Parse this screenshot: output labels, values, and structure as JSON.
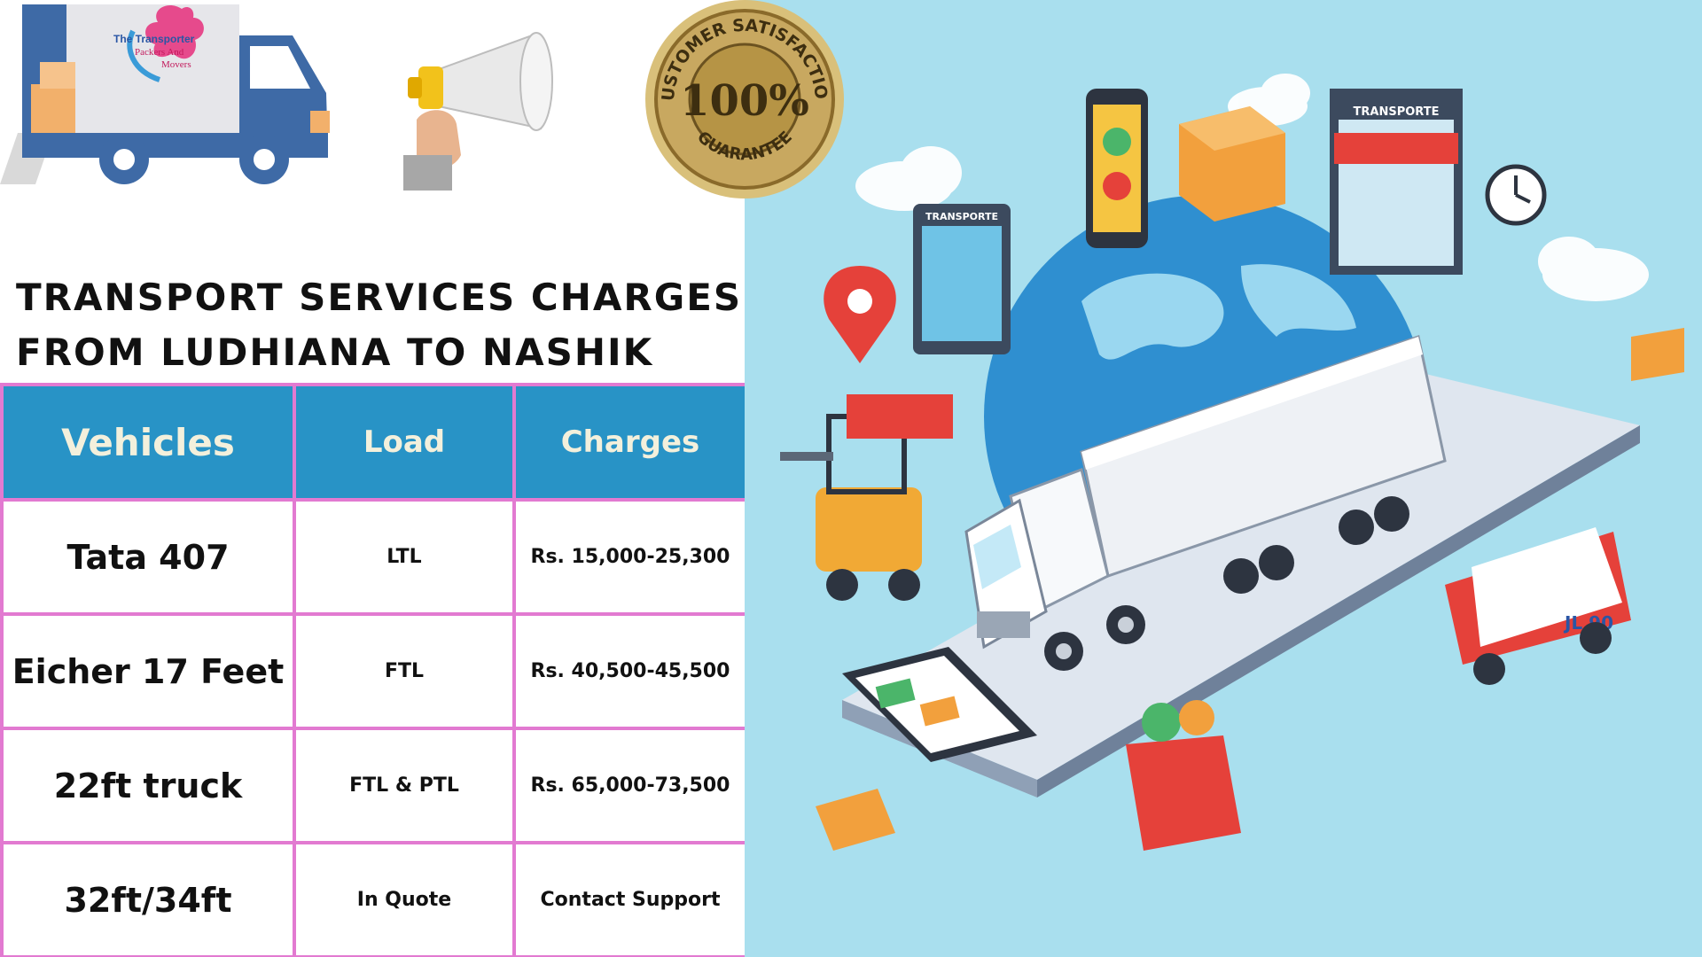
{
  "logo": {
    "brand_text": "The Transporter Packers And Movers"
  },
  "seal": {
    "arc_top": "CUSTOMER SATISFACTION",
    "center": "100%",
    "arc_bottom": "GUARANTEE"
  },
  "headline": {
    "line1": "TRANSPORT SERVICES CHARGES",
    "line2": "FROM LUDHIANA TO NASHIK"
  },
  "table": {
    "headers": [
      "Vehicles",
      "Load",
      "Charges"
    ],
    "rows": [
      {
        "vehicle": "Tata 407",
        "load": "LTL",
        "charges": "Rs. 15,000-25,300"
      },
      {
        "vehicle": "Eicher 17 Feet",
        "load": "FTL",
        "charges": "Rs. 40,500-45,500"
      },
      {
        "vehicle": "22ft truck",
        "load": "FTL & PTL",
        "charges": "Rs. 65,000-73,500"
      },
      {
        "vehicle": "32ft/34ft",
        "load": "In Quote",
        "charges": "Contact Support"
      }
    ]
  },
  "illustration": {
    "signs": [
      "TRANSPORTE",
      "TRANSPORTE"
    ],
    "van_label": "JL 90"
  },
  "colors": {
    "header_blue": "#2893c6",
    "grid_pink": "#e27ad1",
    "sky": "#a9dfee",
    "globe": "#2f8fd0"
  }
}
